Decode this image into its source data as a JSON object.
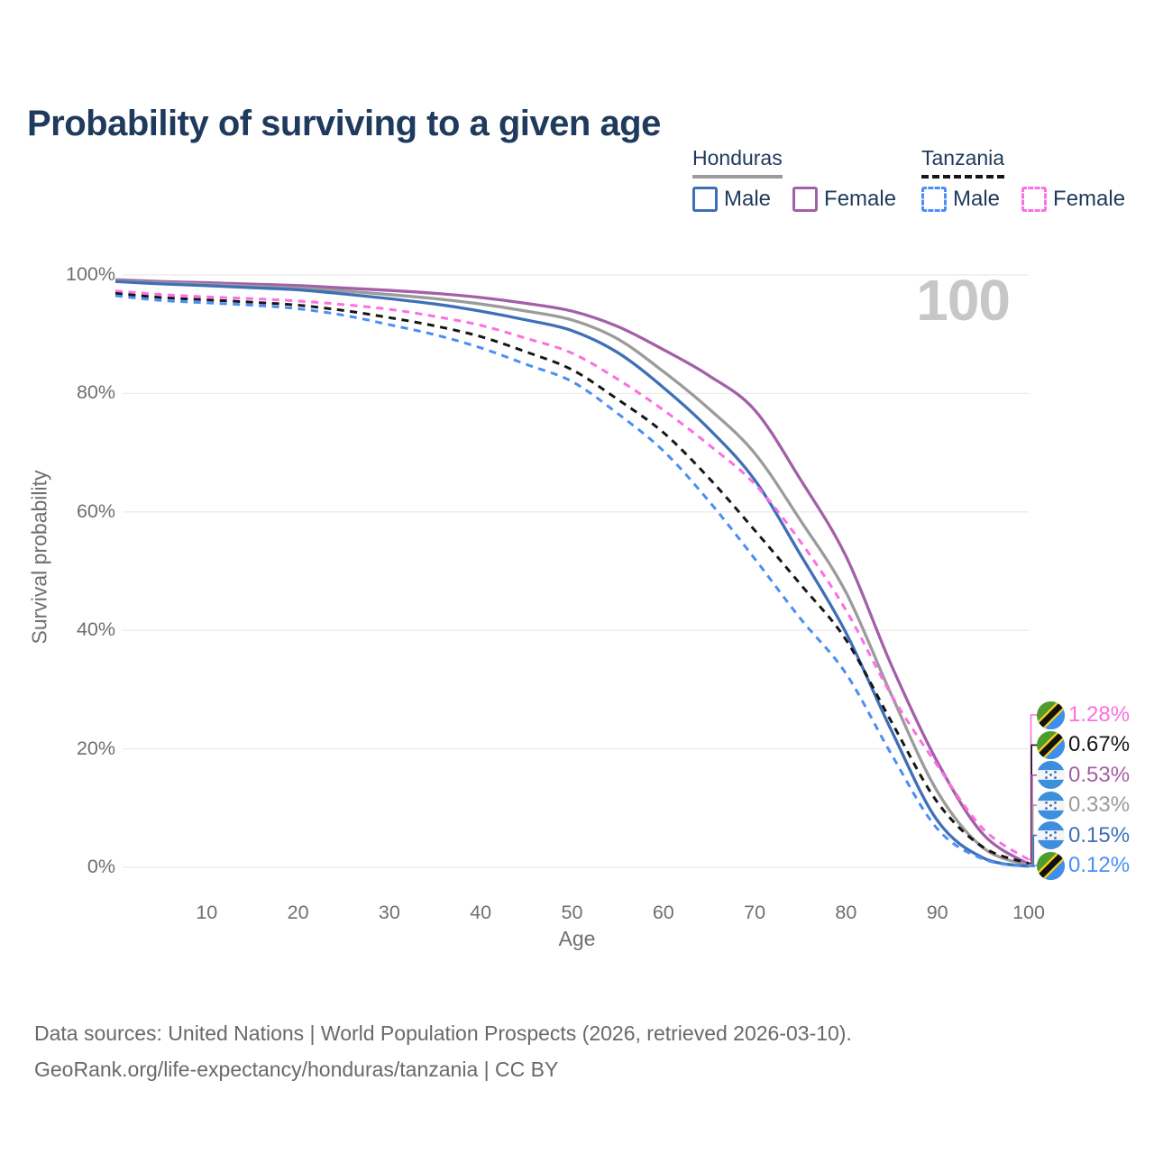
{
  "title": "Probability of surviving to a given age",
  "legend": {
    "groups": [
      {
        "name": "Honduras",
        "line_style": "solid",
        "underline_color": "#9b9b9b",
        "items": [
          {
            "label": "Male",
            "color": "#3e6fb7",
            "dashed": false
          },
          {
            "label": "Female",
            "color": "#a35fa8",
            "dashed": false
          }
        ]
      },
      {
        "name": "Tanzania",
        "line_style": "dashed",
        "underline_color": "#161616",
        "items": [
          {
            "label": "Male",
            "color": "#4a8ef5",
            "dashed": true
          },
          {
            "label": "Female",
            "color": "#fb6fe4",
            "dashed": true
          }
        ]
      }
    ]
  },
  "watermark_age": "100",
  "footer": {
    "line1": "Data sources: United Nations | World Population Prospects (2026, retrieved 2026-03-10).",
    "line2": "GeoRank.org/life-expectancy/honduras/tanzania | CC BY"
  },
  "chart_data": {
    "type": "line",
    "title": "Probability of surviving to a given age",
    "xlabel": "Age",
    "ylabel": "Survival probability",
    "xlim": [
      0,
      100
    ],
    "ylim": [
      0,
      100
    ],
    "x_ticks": [
      10,
      20,
      30,
      40,
      50,
      60,
      70,
      80,
      90,
      100
    ],
    "y_ticks": [
      {
        "value": 0,
        "label": "0%"
      },
      {
        "value": 20,
        "label": "20%"
      },
      {
        "value": 40,
        "label": "40%"
      },
      {
        "value": 60,
        "label": "60%"
      },
      {
        "value": 80,
        "label": "80%"
      },
      {
        "value": 100,
        "label": "100%"
      }
    ],
    "grid": "horizontal",
    "grid_color": "#ebebee",
    "legend_position": "top-right",
    "highlighted_age": 100,
    "x": [
      0,
      5,
      10,
      15,
      20,
      25,
      30,
      35,
      40,
      45,
      50,
      55,
      60,
      65,
      70,
      75,
      80,
      85,
      90,
      95,
      100
    ],
    "series": [
      {
        "name": "Honduras — Female",
        "country": "honduras",
        "sex": "female",
        "color": "#a35fa8",
        "dashed": false,
        "end_label": "0.53%",
        "values": [
          99.2,
          98.9,
          98.7,
          98.45,
          98.2,
          97.8,
          97.4,
          96.9,
          96.2,
          95.2,
          93.9,
          91.3,
          87.4,
          83.0,
          77.2,
          65.5,
          52.5,
          34.0,
          17.8,
          5.6,
          0.53
        ]
      },
      {
        "name": "Honduras — Both sexes",
        "country": "honduras",
        "sex": "both",
        "color": "#9b9b9b",
        "dashed": false,
        "end_label": "0.33%",
        "values": [
          99.05,
          98.7,
          98.4,
          98.1,
          97.8,
          97.3,
          96.7,
          96.0,
          95.1,
          93.9,
          92.4,
          89.2,
          83.7,
          77.4,
          69.9,
          58.6,
          46.4,
          29.0,
          12.8,
          3.3,
          0.33
        ]
      },
      {
        "name": "Honduras — Male",
        "country": "honduras",
        "sex": "male",
        "color": "#3e6fb7",
        "dashed": false,
        "end_label": "0.15%",
        "values": [
          98.9,
          98.5,
          98.2,
          97.85,
          97.5,
          96.8,
          96.0,
          95.1,
          93.9,
          92.4,
          90.6,
          86.9,
          81.0,
          74.0,
          65.4,
          52.8,
          39.6,
          23.0,
          7.9,
          1.6,
          0.15
        ]
      },
      {
        "name": "Tanzania — Female",
        "country": "tanzania",
        "sex": "female",
        "color": "#fb6fe4",
        "dashed": true,
        "end_label": "1.28%",
        "values": [
          97.3,
          96.7,
          96.3,
          96.0,
          95.6,
          95.0,
          94.2,
          93.0,
          91.5,
          89.3,
          86.8,
          82.4,
          77.2,
          71.3,
          64.7,
          55.0,
          43.4,
          29.0,
          17.2,
          6.5,
          1.28
        ]
      },
      {
        "name": "Tanzania — Both sexes",
        "country": "tanzania",
        "sex": "both",
        "color": "#161616",
        "dashed": true,
        "end_label": "0.67%",
        "values": [
          96.9,
          96.2,
          95.8,
          95.4,
          94.9,
          94.0,
          92.8,
          91.4,
          89.6,
          87.0,
          84.0,
          79.0,
          73.4,
          65.7,
          56.9,
          47.8,
          38.4,
          24.5,
          11.0,
          3.4,
          0.67
        ]
      },
      {
        "name": "Tanzania — Male",
        "country": "tanzania",
        "sex": "male",
        "color": "#4a8ef5",
        "dashed": true,
        "end_label": "0.12%",
        "values": [
          96.5,
          95.7,
          95.3,
          94.9,
          94.3,
          93.2,
          91.6,
          89.9,
          87.7,
          84.9,
          82.0,
          76.6,
          70.3,
          61.8,
          52.1,
          42.0,
          32.7,
          19.0,
          6.5,
          1.4,
          0.12
        ]
      }
    ],
    "flag_colors": {
      "tanzania": {
        "green": "#4e9c2e",
        "blue": "#3e8ef0",
        "yellow": "#fcd116",
        "black": "#111111"
      },
      "honduras": {
        "blue": "#3e8ede",
        "white": "#f4f4f4",
        "star": "#2f6fc0"
      }
    }
  }
}
